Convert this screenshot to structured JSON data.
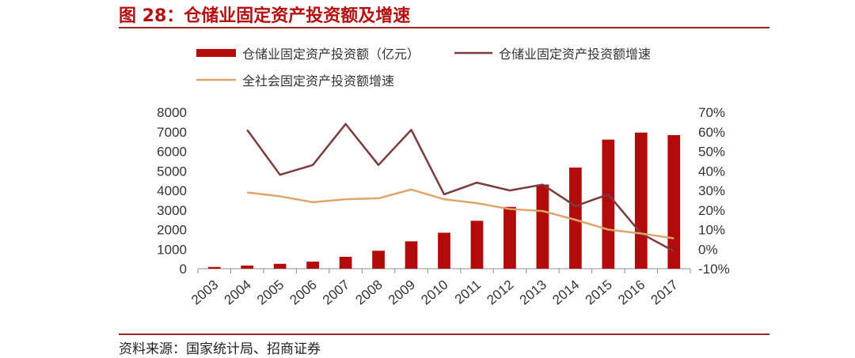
{
  "header": {
    "title": "图 28：仓储业固定资产投资额及增速"
  },
  "footer": {
    "source": "资料来源：国家统计局、招商证券"
  },
  "chart_data": {
    "type": "bar",
    "title": "图 28：仓储业固定资产投资额及增速",
    "categories": [
      "2003",
      "2004",
      "2005",
      "2006",
      "2007",
      "2008",
      "2009",
      "2010",
      "2011",
      "2012",
      "2013",
      "2014",
      "2015",
      "2016",
      "2017"
    ],
    "left_axis": {
      "ylim": [
        0,
        8000
      ],
      "ticks": [
        "0",
        "1000",
        "2000",
        "3000",
        "4000",
        "5000",
        "6000",
        "7000",
        "8000"
      ],
      "tick_values": [
        0,
        1000,
        2000,
        3000,
        4000,
        5000,
        6000,
        7000,
        8000
      ]
    },
    "right_axis": {
      "ylim": [
        -10,
        70
      ],
      "ticks": [
        "-10%",
        "0%",
        "10%",
        "20%",
        "30%",
        "40%",
        "50%",
        "60%",
        "70%"
      ],
      "tick_values": [
        -10,
        0,
        10,
        20,
        30,
        40,
        50,
        60,
        70
      ]
    },
    "series": [
      {
        "name": "仓储业固定资产投资额（亿元）",
        "type": "bar",
        "axis": "left",
        "color": "#b30b0b",
        "values": [
          90,
          160,
          250,
          360,
          610,
          920,
          1400,
          1840,
          2450,
          3160,
          4300,
          5170,
          6600,
          6960,
          6830
        ]
      },
      {
        "name": "仓储业固定资产投资额增速",
        "type": "line",
        "axis": "right",
        "color": "#7a3a3e",
        "values": [
          null,
          61,
          38,
          43,
          64,
          43,
          61,
          28,
          34,
          30,
          33,
          22,
          28,
          8,
          -1
        ]
      },
      {
        "name": "全社会固定资产投资额增速",
        "type": "line",
        "axis": "right",
        "color": "#dea46a",
        "values": [
          null,
          29,
          27,
          24,
          25.5,
          26,
          30.5,
          25.5,
          23.5,
          20.5,
          19.5,
          15,
          10,
          8,
          5.5
        ]
      }
    ],
    "legend": "top",
    "grid": false
  }
}
